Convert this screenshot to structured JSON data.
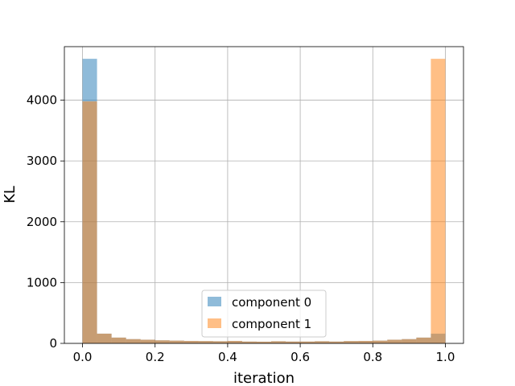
{
  "chart_data": {
    "type": "bar",
    "subtype": "overlapping-histogram",
    "xlabel": "iteration",
    "ylabel": "KL",
    "xlim": [
      -0.05,
      1.05
    ],
    "ylim": [
      0,
      4880
    ],
    "xticks": [
      0.0,
      0.2,
      0.4,
      0.6,
      0.8,
      1.0
    ],
    "xtick_labels": [
      "0.0",
      "0.2",
      "0.4",
      "0.6",
      "0.8",
      "1.0"
    ],
    "yticks": [
      0,
      1000,
      2000,
      3000,
      4000
    ],
    "ytick_labels": [
      "0",
      "1000",
      "2000",
      "3000",
      "4000"
    ],
    "grid": true,
    "legend_position": "lower-center",
    "bin_edges": [
      0.0,
      0.04,
      0.08,
      0.12,
      0.16,
      0.2,
      0.24,
      0.28,
      0.32,
      0.36,
      0.4,
      0.44,
      0.48,
      0.52,
      0.56,
      0.6,
      0.64,
      0.68,
      0.72,
      0.76,
      0.8,
      0.84,
      0.88,
      0.92,
      0.96,
      1.0
    ],
    "series": [
      {
        "name": "component 0",
        "color": "#1f77b4",
        "alpha": 0.5,
        "values": [
          4680,
          160,
          95,
          70,
          60,
          50,
          45,
          40,
          38,
          35,
          40,
          30,
          28,
          35,
          30,
          30,
          35,
          30,
          38,
          40,
          45,
          60,
          70,
          95,
          160
        ]
      },
      {
        "name": "component 1",
        "color": "#ff7f0e",
        "alpha": 0.5,
        "values": [
          3980,
          160,
          95,
          70,
          60,
          50,
          45,
          40,
          38,
          35,
          40,
          30,
          28,
          35,
          30,
          30,
          35,
          30,
          38,
          40,
          45,
          60,
          70,
          95,
          4680
        ]
      }
    ]
  }
}
